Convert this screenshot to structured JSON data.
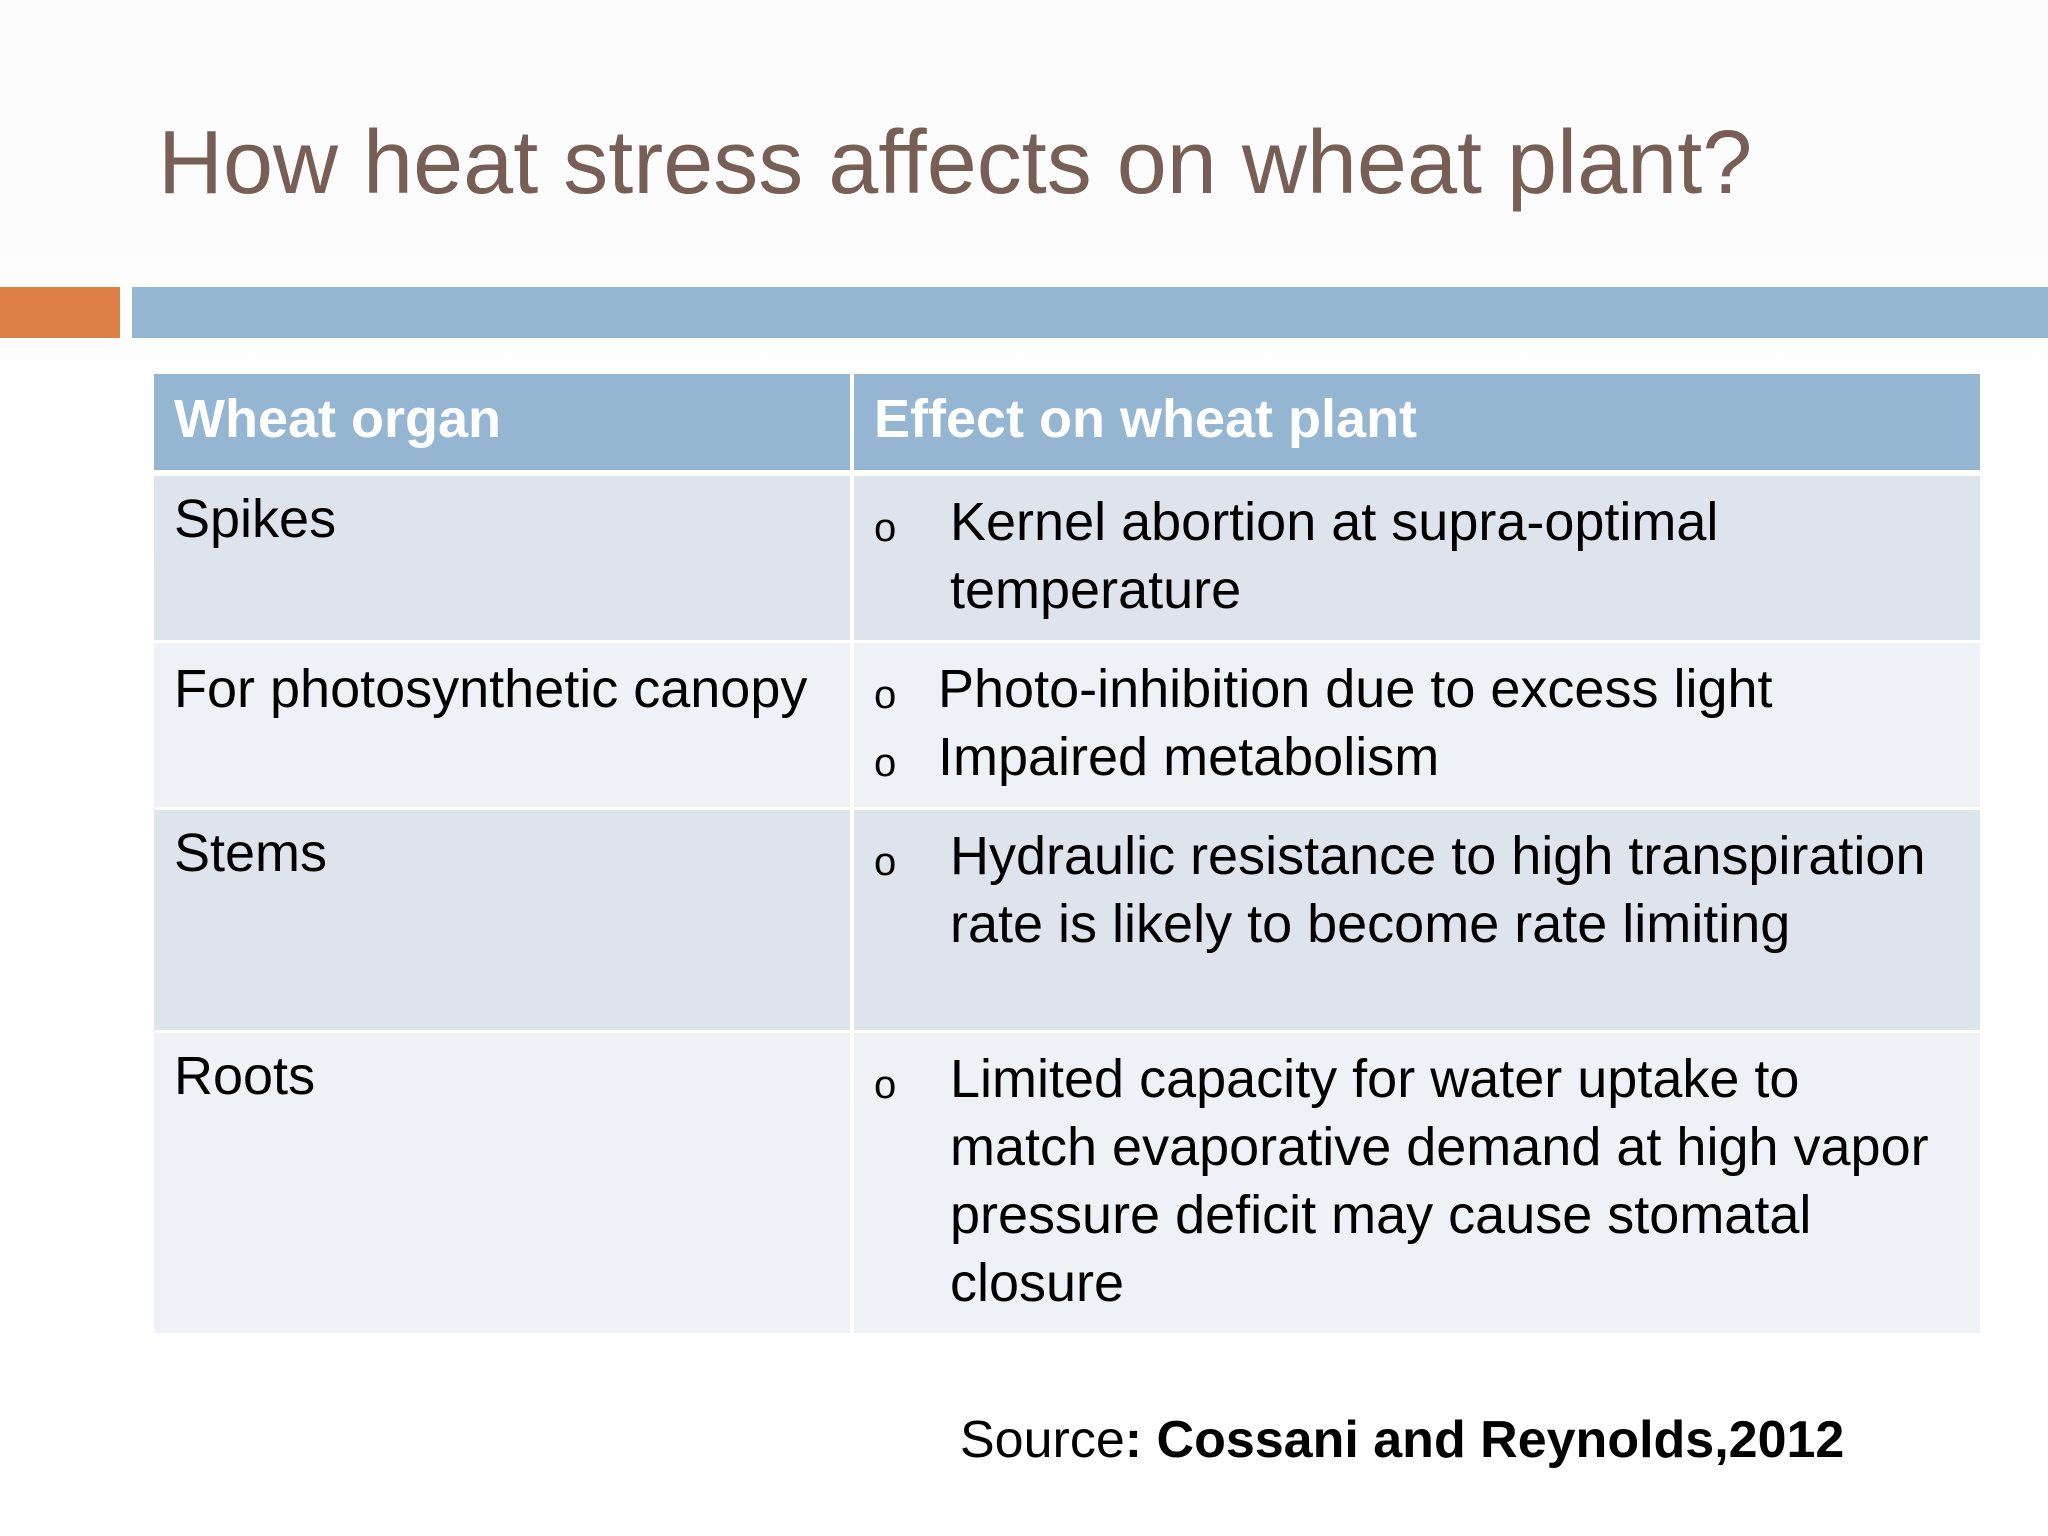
{
  "slide": {
    "title": "How heat stress affects on wheat plant?",
    "accent_color": "#dd8047",
    "bar_color": "#94b6d2",
    "title_color": "#775f55"
  },
  "table": {
    "headers": [
      "Wheat organ",
      "Effect on wheat plant"
    ],
    "bullet_glyph": "o",
    "rows": [
      {
        "organ": "Spikes",
        "effects": [
          "Kernel abortion at supra-optimal temperature"
        ]
      },
      {
        "organ": "For photosynthetic canopy",
        "effects": [
          "Photo-inhibition due to excess light",
          "Impaired metabolism"
        ]
      },
      {
        "organ": "Stems",
        "effects": [
          "Hydraulic resistance to high transpiration rate is likely to become rate limiting"
        ]
      },
      {
        "organ": "Roots",
        "effects": [
          "Limited capacity for water uptake to match evaporative demand at high vapor pressure deficit may cause stomatal closure"
        ]
      }
    ]
  },
  "source": {
    "label": "Source",
    "citation": ": Cossani and Reynolds,2012"
  }
}
